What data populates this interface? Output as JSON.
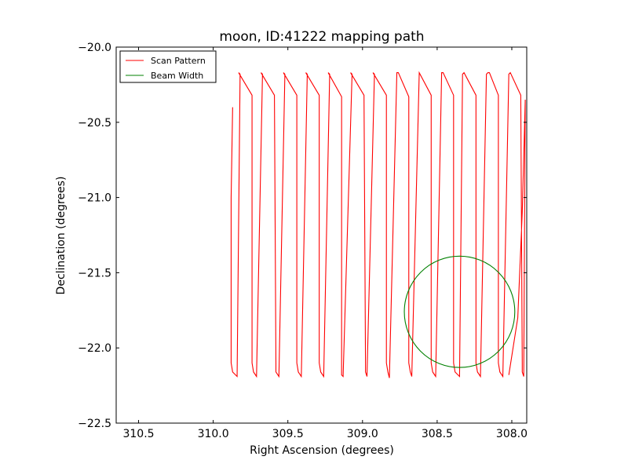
{
  "chart_data": {
    "type": "line",
    "title": "moon, ID:41222 mapping path",
    "xlabel": "Right Ascension (degrees)",
    "ylabel": "Declination (degrees)",
    "xlim": [
      310.65,
      307.9
    ],
    "ylim": [
      -22.5,
      -20.0
    ],
    "x_ticks": [
      310.5,
      310.0,
      309.5,
      309.0,
      308.5,
      308.0
    ],
    "x_tick_labels": [
      "310.5",
      "310.0",
      "309.5",
      "309.0",
      "308.5",
      "308.0"
    ],
    "y_ticks": [
      -20.0,
      -20.5,
      -21.0,
      -21.5,
      -22.0,
      -22.5
    ],
    "y_tick_labels": [
      "−20.0",
      "−20.5",
      "−21.0",
      "−21.5",
      "−22.0",
      "−22.5"
    ],
    "legend_position": "top-left",
    "grid": false,
    "series": [
      {
        "name": "Scan Pattern",
        "color": "#ff0000",
        "x": [
          309.87,
          309.88,
          309.88,
          309.87,
          309.84,
          309.82,
          309.83,
          309.74,
          309.74,
          309.73,
          309.71,
          309.67,
          309.68,
          309.59,
          309.58,
          309.58,
          309.56,
          309.52,
          309.53,
          309.44,
          309.44,
          309.43,
          309.41,
          309.37,
          309.38,
          309.29,
          309.29,
          309.28,
          309.26,
          309.22,
          309.23,
          309.14,
          309.14,
          309.14,
          309.13,
          309.07,
          309.08,
          308.99,
          308.98,
          308.98,
          308.97,
          308.92,
          308.93,
          308.84,
          308.84,
          308.83,
          308.82,
          308.77,
          308.76,
          308.69,
          308.69,
          308.68,
          308.67,
          308.62,
          308.62,
          308.54,
          308.54,
          308.53,
          308.51,
          308.47,
          308.46,
          308.46,
          308.39,
          308.39,
          308.38,
          308.35,
          308.33,
          308.32,
          308.24,
          308.24,
          308.23,
          308.21,
          308.17,
          308.16,
          308.15,
          308.09,
          308.09,
          308.08,
          308.06,
          308.02,
          308.01,
          307.94,
          307.93,
          307.93,
          307.92,
          307.91,
          307.91,
          307.93,
          307.96,
          308.02
        ],
        "y": [
          -20.4,
          -21.0,
          -22.1,
          -22.16,
          -22.19,
          -20.18,
          -20.17,
          -20.32,
          -22.1,
          -22.16,
          -22.19,
          -20.18,
          -20.17,
          -20.32,
          -22.1,
          -22.16,
          -22.19,
          -20.18,
          -20.17,
          -20.32,
          -22.1,
          -22.16,
          -22.19,
          -20.18,
          -20.17,
          -20.32,
          -22.1,
          -22.16,
          -22.19,
          -20.18,
          -20.17,
          -20.33,
          -22.15,
          -22.18,
          -22.19,
          -20.18,
          -20.17,
          -20.32,
          -22.1,
          -22.16,
          -22.19,
          -20.18,
          -20.17,
          -20.32,
          -22.1,
          -22.16,
          -22.2,
          -20.17,
          -20.17,
          -20.33,
          -22.1,
          -22.16,
          -22.19,
          -20.17,
          -20.17,
          -20.32,
          -22.1,
          -22.16,
          -22.19,
          -20.17,
          -20.17,
          -20.17,
          -20.32,
          -22.1,
          -22.16,
          -22.19,
          -20.18,
          -20.17,
          -20.32,
          -22.1,
          -22.16,
          -22.19,
          -20.18,
          -20.17,
          -20.17,
          -20.32,
          -22.1,
          -22.16,
          -22.19,
          -20.18,
          -20.17,
          -20.32,
          -22.1,
          -22.16,
          -22.19,
          -20.35,
          -20.35,
          -21.1,
          -21.8,
          -22.18
        ]
      },
      {
        "name": "Beam Width",
        "color": "#008000",
        "shape": "circle",
        "center": [
          308.35,
          -21.76
        ],
        "radius_deg": 0.37
      }
    ]
  }
}
